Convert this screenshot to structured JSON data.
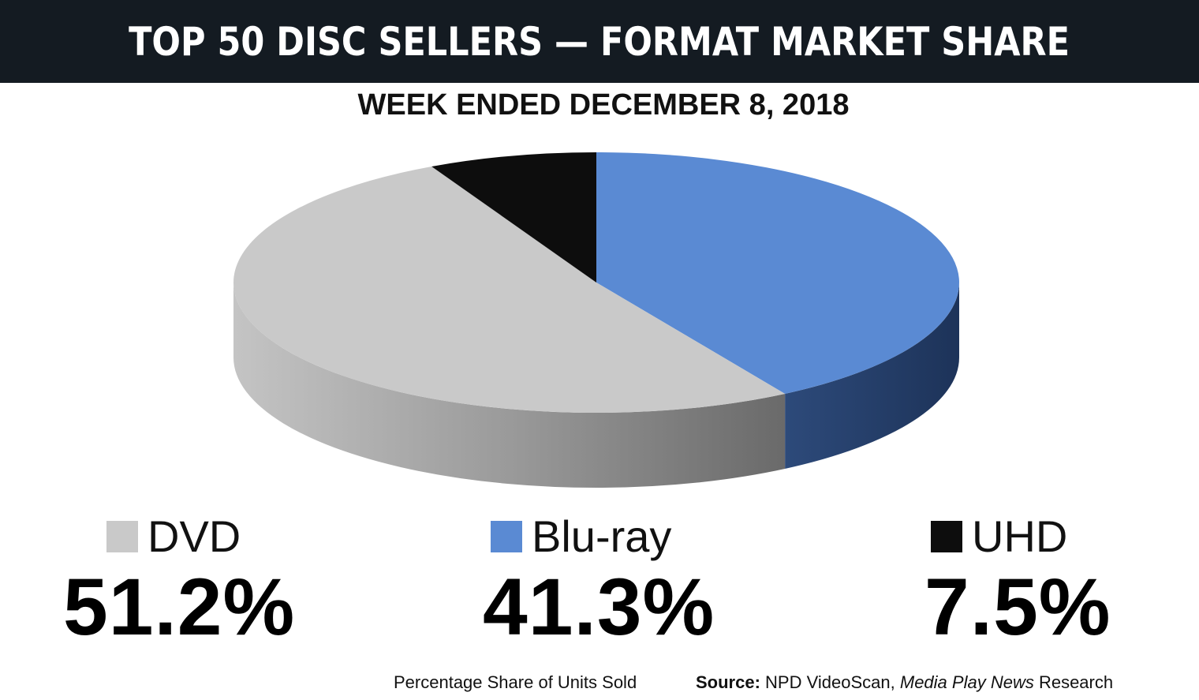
{
  "header": {
    "title": "TOP 50 DISC SELLERS — FORMAT MARKET SHARE",
    "subtitle": "WEEK ENDED DECEMBER 8, 2018"
  },
  "colors": {
    "header_bg": "#141b22",
    "dvd": "#c9c9c9",
    "bluray": "#5a8ad3",
    "uhd": "#0d0d0d"
  },
  "chart_data": {
    "type": "pie",
    "title": "TOP 50 DISC SELLERS — FORMAT MARKET SHARE",
    "subtitle": "WEEK ENDED DECEMBER 8, 2018",
    "categories": [
      "DVD",
      "Blu-ray",
      "UHD"
    ],
    "values": [
      51.2,
      41.3,
      7.5
    ],
    "value_labels": [
      "51.2%",
      "41.3%",
      "7.5%"
    ],
    "legend_position": "bottom"
  },
  "footer": {
    "note": "Percentage Share of Units Sold",
    "source_label": "Source:",
    "source_text": "NPD VideoScan,",
    "source_italic": "Media Play News",
    "source_tail": "Research"
  }
}
